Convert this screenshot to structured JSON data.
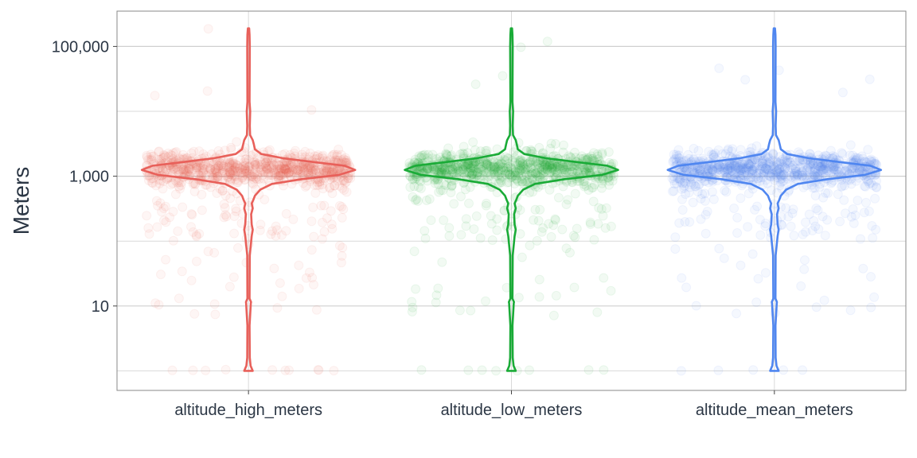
{
  "chart_data": {
    "type": "violin",
    "ylabel": "Meters",
    "y_scale": "log10",
    "ylim": [
      0.5,
      350000
    ],
    "grid": true,
    "y_ticks": [
      {
        "value": 10,
        "label": "10"
      },
      {
        "value": 1000,
        "label": "1,000"
      },
      {
        "value": 100000,
        "label": "100,000"
      }
    ],
    "y_minor_gridlines": [
      1,
      100,
      10000
    ],
    "categories": [
      "altitude_high_meters",
      "altitude_low_meters",
      "altitude_mean_meters"
    ],
    "series": [
      {
        "category": "altitude_high_meters",
        "color": "#e8605a",
        "min": 1,
        "max": 190000,
        "mode": 1300
      },
      {
        "category": "altitude_low_meters",
        "color": "#1aab37",
        "min": 1,
        "max": 190000,
        "mode": 1300
      },
      {
        "category": "altitude_mean_meters",
        "color": "#4f86f0",
        "min": 1,
        "max": 190000,
        "mode": 1300
      }
    ],
    "violin_profile": [
      {
        "v": 1,
        "w": 0.04
      },
      {
        "v": 1.2,
        "w": 0.02
      },
      {
        "v": 1.6,
        "w": 0.012
      },
      {
        "v": 5,
        "w": 0.01
      },
      {
        "v": 11,
        "w": 0.022
      },
      {
        "v": 11.5,
        "w": 0.024
      },
      {
        "v": 13,
        "w": 0.01
      },
      {
        "v": 60,
        "w": 0.012
      },
      {
        "v": 120,
        "w": 0.03
      },
      {
        "v": 150,
        "w": 0.04
      },
      {
        "v": 180,
        "w": 0.03
      },
      {
        "v": 260,
        "w": 0.025
      },
      {
        "v": 320,
        "w": 0.04
      },
      {
        "v": 380,
        "w": 0.03
      },
      {
        "v": 430,
        "w": 0.045
      },
      {
        "v": 500,
        "w": 0.06
      },
      {
        "v": 620,
        "w": 0.11
      },
      {
        "v": 760,
        "w": 0.22
      },
      {
        "v": 900,
        "w": 0.5
      },
      {
        "v": 1050,
        "w": 0.85
      },
      {
        "v": 1250,
        "w": 1.0
      },
      {
        "v": 1450,
        "w": 0.9
      },
      {
        "v": 1650,
        "w": 0.62
      },
      {
        "v": 1900,
        "w": 0.32
      },
      {
        "v": 2200,
        "w": 0.12
      },
      {
        "v": 2600,
        "w": 0.06
      },
      {
        "v": 3100,
        "w": 0.05
      },
      {
        "v": 3600,
        "w": 0.04
      },
      {
        "v": 4300,
        "w": 0.015
      },
      {
        "v": 6000,
        "w": 0.012
      },
      {
        "v": 10000,
        "w": 0.016
      },
      {
        "v": 14000,
        "w": 0.01
      },
      {
        "v": 100000,
        "w": 0.012
      },
      {
        "v": 150000,
        "w": 0.01
      },
      {
        "v": 190000,
        "w": 0.006
      }
    ]
  }
}
